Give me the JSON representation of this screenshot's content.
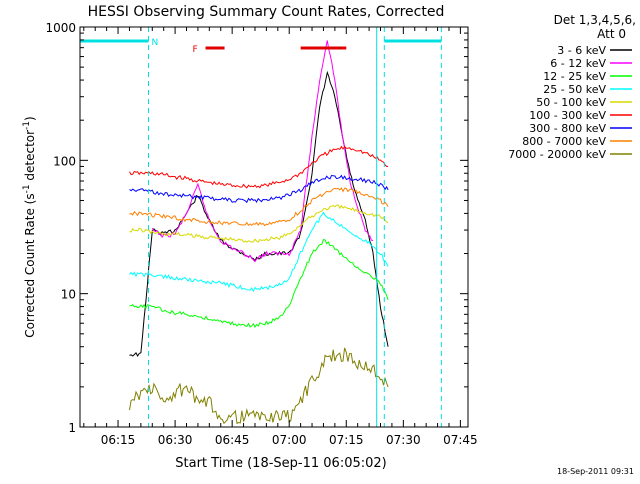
{
  "chart_data": {
    "type": "line",
    "title": "HESSI Observing Summary Count Rates, Corrected",
    "xlabel": "Start Time (18-Sep-11 06:05:02)",
    "ylabel": "Corrected Count Rate (s",
    "ylabel_sup1": "-1",
    "ylabel_mid": " detector",
    "ylabel_sup2": "-1",
    "ylabel_end": ")",
    "y_scale": "log",
    "xlim": [
      "06:05",
      "07:47"
    ],
    "ylim": [
      1,
      1000
    ],
    "x_ticks": [
      "06:15",
      "06:30",
      "06:45",
      "07:00",
      "07:15",
      "07:30",
      "07:45"
    ],
    "y_ticks": [
      "1",
      "10",
      "100",
      "1000"
    ],
    "grid": false,
    "legend_position": "right",
    "legend_header": [
      "Det 1,3,4,5,6,",
      "Att 0"
    ],
    "timestamp": "18-Sep-2011 09:31",
    "annotations": [
      {
        "label": "N",
        "color": "#00e0e0",
        "type": "night",
        "x_start": "06:05",
        "x_end": "06:23"
      },
      {
        "label": "",
        "color": "#00e0e0",
        "type": "night",
        "x_start": "07:25",
        "x_end": "07:40"
      },
      {
        "label": "F",
        "color": "#e00000",
        "type": "flag",
        "x_start": "06:38",
        "x_end": "06:43"
      },
      {
        "label": "",
        "color": "#e00000",
        "type": "flag",
        "x_start": "07:03",
        "x_end": "07:15"
      }
    ],
    "boundaries": [
      {
        "x": "06:23",
        "style": "dashed",
        "color": "#00e0e0"
      },
      {
        "x": "07:23",
        "style": "solid",
        "color": "#00e0e0"
      },
      {
        "x": "07:25",
        "style": "dashed",
        "color": "#00e0e0"
      },
      {
        "x": "07:40",
        "style": "dashed",
        "color": "#00e0e0"
      }
    ],
    "series": [
      {
        "name": "3 - 6 keV",
        "color": "#000000",
        "x": [
          "06:18",
          "06:21",
          "06:24",
          "06:27",
          "06:30",
          "06:33",
          "06:36",
          "06:39",
          "06:42",
          "06:45",
          "06:48",
          "06:51",
          "06:54",
          "06:57",
          "07:00",
          "07:03",
          "07:06",
          "07:08",
          "07:10",
          "07:12",
          "07:14",
          "07:16",
          "07:18",
          "07:20",
          "07:22",
          "07:24",
          "07:26"
        ],
        "y": [
          3.5,
          3.5,
          30,
          28,
          30,
          40,
          55,
          35,
          25,
          22,
          20,
          18,
          20,
          20,
          20,
          28,
          80,
          250,
          450,
          300,
          150,
          80,
          50,
          35,
          20,
          8,
          4
        ]
      },
      {
        "name": "6 - 12 keV",
        "color": "#ff00ff",
        "x": [
          "06:24",
          "06:27",
          "06:30",
          "06:33",
          "06:36",
          "06:39",
          "06:42",
          "06:45",
          "06:48",
          "06:51",
          "06:54",
          "06:57",
          "07:00",
          "07:03",
          "07:06",
          "07:08",
          "07:10",
          "07:12",
          "07:14",
          "07:16",
          "07:18",
          "07:20",
          "07:22"
        ],
        "y": [
          30,
          27,
          28,
          40,
          65,
          35,
          25,
          22,
          20,
          18,
          20,
          20,
          20,
          30,
          150,
          400,
          800,
          400,
          150,
          70,
          45,
          30,
          25
        ]
      },
      {
        "name": "12 - 25 keV",
        "color": "#00ff00",
        "x": [
          "06:18",
          "06:21",
          "06:24",
          "06:27",
          "06:30",
          "06:33",
          "06:36",
          "06:39",
          "06:42",
          "06:45",
          "06:48",
          "06:51",
          "06:54",
          "06:57",
          "07:00",
          "07:03",
          "07:06",
          "07:09",
          "07:12",
          "07:15",
          "07:18",
          "07:21",
          "07:24",
          "07:26"
        ],
        "y": [
          8,
          8,
          8,
          7.5,
          7.2,
          7,
          6.8,
          6.5,
          6.2,
          6,
          5.8,
          5.8,
          6,
          6.5,
          8,
          13,
          20,
          25,
          22,
          18,
          16,
          14,
          12,
          9
        ]
      },
      {
        "name": "25 - 50 keV",
        "color": "#00ffff",
        "x": [
          "06:18",
          "06:21",
          "06:24",
          "06:27",
          "06:30",
          "06:33",
          "06:36",
          "06:39",
          "06:42",
          "06:45",
          "06:48",
          "06:51",
          "06:54",
          "06:57",
          "07:00",
          "07:03",
          "07:06",
          "07:09",
          "07:12",
          "07:15",
          "07:18",
          "07:21",
          "07:24",
          "07:26"
        ],
        "y": [
          14,
          14,
          13.5,
          13.5,
          13,
          12.8,
          12.5,
          12.2,
          12,
          11.5,
          11,
          10.8,
          11,
          11.5,
          13,
          20,
          30,
          40,
          35,
          30,
          27,
          24,
          20,
          16
        ]
      },
      {
        "name": "50 - 100 keV",
        "color": "#d8d800",
        "x": [
          "06:18",
          "06:21",
          "06:24",
          "06:27",
          "06:30",
          "06:33",
          "06:36",
          "06:39",
          "06:42",
          "06:45",
          "06:48",
          "06:51",
          "06:54",
          "06:57",
          "07:00",
          "07:03",
          "07:06",
          "07:09",
          "07:12",
          "07:15",
          "07:18",
          "07:21",
          "07:24",
          "07:26"
        ],
        "y": [
          30,
          30,
          29,
          28,
          28,
          27.5,
          27,
          26.5,
          26,
          25.5,
          25,
          25,
          25.5,
          26,
          28,
          33,
          38,
          43,
          45,
          44,
          42,
          40,
          38,
          34
        ]
      },
      {
        "name": "100 - 300 keV",
        "color": "#ff0000",
        "x": [
          "06:18",
          "06:21",
          "06:24",
          "06:27",
          "06:30",
          "06:33",
          "06:36",
          "06:39",
          "06:42",
          "06:45",
          "06:48",
          "06:51",
          "06:54",
          "06:57",
          "07:00",
          "07:03",
          "07:06",
          "07:09",
          "07:12",
          "07:15",
          "07:18",
          "07:21",
          "07:24",
          "07:26"
        ],
        "y": [
          80,
          80,
          80,
          78,
          75,
          73,
          70,
          68,
          66,
          65,
          64,
          64,
          65,
          68,
          72,
          80,
          95,
          110,
          120,
          125,
          120,
          110,
          100,
          90
        ]
      },
      {
        "name": "300 - 800 keV",
        "color": "#0000ff",
        "x": [
          "06:18",
          "06:21",
          "06:24",
          "06:27",
          "06:30",
          "06:33",
          "06:36",
          "06:39",
          "06:42",
          "06:45",
          "06:48",
          "06:51",
          "06:54",
          "06:57",
          "07:00",
          "07:03",
          "07:06",
          "07:09",
          "07:12",
          "07:15",
          "07:18",
          "07:21",
          "07:24",
          "07:26"
        ],
        "y": [
          60,
          60,
          58,
          56,
          55,
          54,
          53,
          52,
          51,
          50,
          50,
          50,
          51,
          52,
          55,
          60,
          68,
          73,
          75,
          74,
          72,
          70,
          66,
          60
        ]
      },
      {
        "name": "800 - 7000 keV",
        "color": "#ff8000",
        "x": [
          "06:18",
          "06:21",
          "06:24",
          "06:27",
          "06:30",
          "06:33",
          "06:36",
          "06:39",
          "06:42",
          "06:45",
          "06:48",
          "06:51",
          "06:54",
          "06:57",
          "07:00",
          "07:03",
          "07:06",
          "07:09",
          "07:12",
          "07:15",
          "07:18",
          "07:21",
          "07:24",
          "07:26"
        ],
        "y": [
          40,
          40,
          39,
          38,
          37,
          36,
          35,
          34.5,
          34,
          33.5,
          33,
          33,
          33.5,
          34,
          36,
          42,
          50,
          56,
          60,
          60,
          58,
          55,
          50,
          45
        ]
      },
      {
        "name": "7000 - 20000 keV",
        "color": "#808000",
        "x": [
          "06:18",
          "06:21",
          "06:24",
          "06:27",
          "06:30",
          "06:33",
          "06:36",
          "06:39",
          "06:42",
          "06:45",
          "06:48",
          "06:51",
          "06:54",
          "06:57",
          "07:00",
          "07:03",
          "07:06",
          "07:09",
          "07:12",
          "07:15",
          "07:18",
          "07:21",
          "07:24",
          "07:26"
        ],
        "y": [
          1.5,
          1.8,
          2,
          1.5,
          1.8,
          2,
          1.5,
          1.5,
          1.2,
          1.2,
          1.2,
          1.2,
          1.2,
          1.2,
          1.2,
          1.6,
          2.2,
          3,
          3.5,
          3.5,
          3,
          2.8,
          2.5,
          2
        ]
      }
    ]
  }
}
